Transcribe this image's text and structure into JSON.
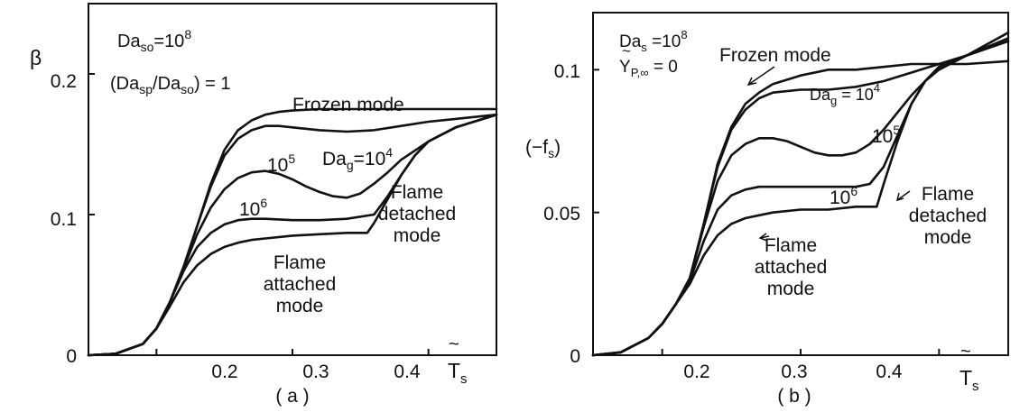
{
  "chart_data": [
    {
      "panel_id": "a",
      "caption": "( a )",
      "type": "line",
      "ylabel": "β",
      "xlabel_symbol": "T",
      "xlabel_tilde": "~",
      "xlabel_sub": "s",
      "xlim": [
        0.15,
        0.45
      ],
      "ylim": [
        0,
        0.25
      ],
      "xticks": [
        0.2,
        0.3,
        0.4
      ],
      "yticks": [
        0,
        0.1,
        0.2
      ],
      "xtick_labels": [
        "0.2",
        "0.3",
        "0.4"
      ],
      "ytick_labels": [
        "0",
        "0.1",
        "0.2"
      ],
      "grid": false,
      "legend": "none",
      "param_lines": [
        {
          "base": "Da",
          "sub": "so",
          "sup": "",
          "op": "=",
          "value": "10",
          "exp": "8"
        },
        {
          "text": "(Da",
          "sub": "sp",
          "mid": "/Da",
          "sub2": "so",
          "tail": ") = 1"
        }
      ],
      "series": [
        {
          "label": "Frozen mode",
          "x": [
            0.15,
            0.17,
            0.19,
            0.2,
            0.21,
            0.22,
            0.23,
            0.24,
            0.25,
            0.26,
            0.27,
            0.28,
            0.29,
            0.3,
            0.32,
            0.34,
            0.36,
            0.38,
            0.4,
            0.42,
            0.45
          ],
          "y": [
            0,
            0.001,
            0.008,
            0.019,
            0.038,
            0.063,
            0.092,
            0.122,
            0.146,
            0.16,
            0.167,
            0.171,
            0.173,
            0.174,
            0.175,
            0.175,
            0.175,
            0.175,
            0.175,
            0.175,
            0.175
          ]
        },
        {
          "label": "Da_g = 10^4",
          "x": [
            0.15,
            0.17,
            0.19,
            0.2,
            0.21,
            0.22,
            0.23,
            0.24,
            0.25,
            0.26,
            0.27,
            0.28,
            0.29,
            0.3,
            0.32,
            0.34,
            0.36,
            0.38,
            0.4,
            0.42,
            0.45
          ],
          "y": [
            0,
            0.001,
            0.008,
            0.019,
            0.038,
            0.063,
            0.092,
            0.12,
            0.142,
            0.154,
            0.16,
            0.163,
            0.163,
            0.162,
            0.16,
            0.159,
            0.16,
            0.163,
            0.166,
            0.168,
            0.171
          ]
        },
        {
          "label": "10^5",
          "x": [
            0.15,
            0.17,
            0.19,
            0.2,
            0.21,
            0.22,
            0.23,
            0.24,
            0.25,
            0.26,
            0.27,
            0.28,
            0.29,
            0.3,
            0.31,
            0.32,
            0.33,
            0.34,
            0.35,
            0.36,
            0.37,
            0.38,
            0.4,
            0.42,
            0.45
          ],
          "y": [
            0,
            0.001,
            0.008,
            0.019,
            0.038,
            0.062,
            0.086,
            0.105,
            0.118,
            0.126,
            0.13,
            0.131,
            0.129,
            0.125,
            0.12,
            0.116,
            0.113,
            0.112,
            0.115,
            0.122,
            0.13,
            0.139,
            0.152,
            0.162,
            0.171
          ]
        },
        {
          "label": "10^6",
          "x": [
            0.15,
            0.17,
            0.19,
            0.2,
            0.21,
            0.22,
            0.23,
            0.24,
            0.25,
            0.26,
            0.27,
            0.28,
            0.3,
            0.32,
            0.34,
            0.36,
            0.37,
            0.38,
            0.39,
            0.4,
            0.42,
            0.45
          ],
          "y": [
            0,
            0.001,
            0.008,
            0.019,
            0.038,
            0.06,
            0.077,
            0.087,
            0.093,
            0.096,
            0.097,
            0.097,
            0.096,
            0.096,
            0.097,
            0.1,
            0.113,
            0.128,
            0.142,
            0.152,
            0.162,
            0.171
          ]
        },
        {
          "label": "Flame attached mode",
          "x": [
            0.15,
            0.17,
            0.19,
            0.2,
            0.21,
            0.22,
            0.23,
            0.24,
            0.25,
            0.26,
            0.27,
            0.28,
            0.3,
            0.32,
            0.34,
            0.355,
            0.36,
            0.37,
            0.38,
            0.39,
            0.4,
            0.42,
            0.45
          ],
          "y": [
            0,
            0.001,
            0.008,
            0.019,
            0.035,
            0.052,
            0.064,
            0.072,
            0.077,
            0.08,
            0.082,
            0.083,
            0.085,
            0.086,
            0.087,
            0.087,
            0.094,
            0.111,
            0.128,
            0.142,
            0.152,
            0.162,
            0.171
          ]
        }
      ],
      "annotations": {
        "frozen": "Frozen mode",
        "da4_base": "Da",
        "da4_sub": "g",
        "da4_eq": "=10",
        "da4_exp": "4",
        "l5_base": "10",
        "l5_exp": "5",
        "l6_base": "10",
        "l6_exp": "6",
        "attached_1": "Flame",
        "attached_2": "attached",
        "attached_3": "mode",
        "detached_1": "Flame",
        "detached_2": "detached",
        "detached_3": "mode"
      }
    },
    {
      "panel_id": "b",
      "caption": "( b )",
      "type": "line",
      "ylabel": "(−f",
      "ylabel_sub": "s",
      "ylabel_close": ")",
      "xlabel_symbol": "T",
      "xlabel_tilde": "~",
      "xlabel_sub": "s",
      "xlim": [
        0.15,
        0.45
      ],
      "ylim": [
        0,
        0.12
      ],
      "xticks": [
        0.2,
        0.3,
        0.4
      ],
      "yticks": [
        0,
        0.05,
        0.1
      ],
      "xtick_labels": [
        "0.2",
        "0.3",
        "0.4"
      ],
      "ytick_labels": [
        "0",
        "0.05",
        "0.1"
      ],
      "grid": false,
      "legend": "none",
      "param_lines": [
        {
          "base": "Da",
          "sub": "s",
          "op": " =",
          "value": "10",
          "exp": "8"
        },
        {
          "base": "Y",
          "tilde": "~",
          "sub": "P,∞",
          "tail": " = 0"
        }
      ],
      "series": [
        {
          "label": "Frozen mode",
          "x": [
            0.15,
            0.17,
            0.19,
            0.2,
            0.21,
            0.22,
            0.23,
            0.24,
            0.25,
            0.26,
            0.27,
            0.28,
            0.3,
            0.32,
            0.34,
            0.36,
            0.38,
            0.4,
            0.42,
            0.45
          ],
          "y": [
            0,
            0.001,
            0.006,
            0.011,
            0.018,
            0.027,
            0.046,
            0.067,
            0.08,
            0.088,
            0.092,
            0.095,
            0.098,
            0.1,
            0.1,
            0.101,
            0.102,
            0.102,
            0.102,
            0.103
          ]
        },
        {
          "label": "Da_g = 10^4",
          "x": [
            0.15,
            0.17,
            0.19,
            0.2,
            0.21,
            0.22,
            0.23,
            0.24,
            0.25,
            0.26,
            0.27,
            0.28,
            0.3,
            0.32,
            0.34,
            0.36,
            0.38,
            0.4,
            0.42,
            0.45
          ],
          "y": [
            0,
            0.001,
            0.006,
            0.011,
            0.018,
            0.027,
            0.046,
            0.066,
            0.079,
            0.086,
            0.09,
            0.092,
            0.093,
            0.093,
            0.094,
            0.096,
            0.099,
            0.102,
            0.105,
            0.113
          ]
        },
        {
          "label": "10^5",
          "x": [
            0.15,
            0.17,
            0.19,
            0.2,
            0.21,
            0.22,
            0.23,
            0.24,
            0.25,
            0.26,
            0.27,
            0.28,
            0.29,
            0.3,
            0.31,
            0.32,
            0.33,
            0.34,
            0.35,
            0.36,
            0.37,
            0.38,
            0.39,
            0.4,
            0.42,
            0.45
          ],
          "y": [
            0,
            0.001,
            0.006,
            0.011,
            0.018,
            0.027,
            0.045,
            0.061,
            0.07,
            0.074,
            0.076,
            0.076,
            0.075,
            0.073,
            0.071,
            0.07,
            0.07,
            0.071,
            0.074,
            0.079,
            0.085,
            0.091,
            0.096,
            0.1,
            0.105,
            0.111
          ]
        },
        {
          "label": "10^6",
          "x": [
            0.15,
            0.17,
            0.19,
            0.2,
            0.21,
            0.22,
            0.23,
            0.24,
            0.25,
            0.26,
            0.27,
            0.28,
            0.3,
            0.32,
            0.34,
            0.35,
            0.36,
            0.37,
            0.38,
            0.39,
            0.4,
            0.42,
            0.45
          ],
          "y": [
            0,
            0.001,
            0.006,
            0.011,
            0.018,
            0.026,
            0.04,
            0.051,
            0.056,
            0.058,
            0.059,
            0.059,
            0.059,
            0.059,
            0.059,
            0.06,
            0.066,
            0.077,
            0.088,
            0.096,
            0.101,
            0.105,
            0.11
          ]
        },
        {
          "label": "Flame attached mode",
          "x": [
            0.15,
            0.17,
            0.19,
            0.2,
            0.21,
            0.22,
            0.23,
            0.24,
            0.25,
            0.26,
            0.27,
            0.28,
            0.3,
            0.32,
            0.34,
            0.355,
            0.36,
            0.37,
            0.38,
            0.39,
            0.4,
            0.42,
            0.45
          ],
          "y": [
            0,
            0.001,
            0.006,
            0.011,
            0.018,
            0.025,
            0.035,
            0.042,
            0.046,
            0.048,
            0.049,
            0.05,
            0.051,
            0.051,
            0.052,
            0.052,
            0.06,
            0.075,
            0.088,
            0.096,
            0.101,
            0.105,
            0.11
          ]
        }
      ],
      "annotations": {
        "frozen": "Frozen mode",
        "da4_base": "Da",
        "da4_sub": "g",
        "da4_eq": " = 10",
        "da4_exp": "4",
        "l5_base": "10",
        "l5_exp": "5",
        "l6_base": "10",
        "l6_exp": "6",
        "attached_1": "Flame",
        "attached_2": "attached",
        "attached_3": "mode",
        "detached_1": "Flame",
        "detached_2": "detached",
        "detached_3": "mode"
      }
    }
  ]
}
